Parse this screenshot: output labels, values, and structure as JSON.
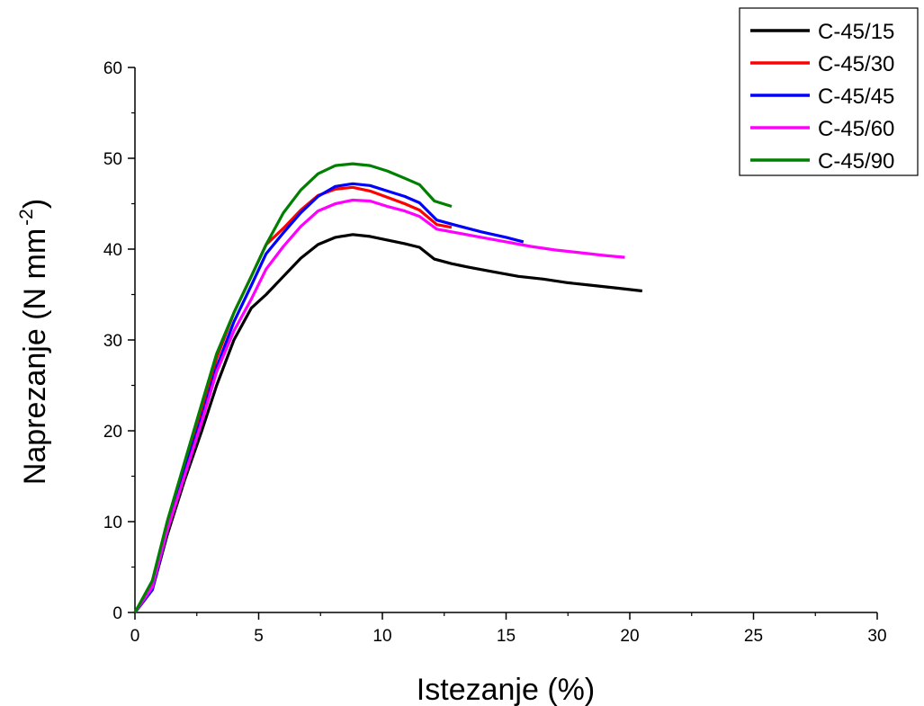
{
  "chart_data": {
    "type": "line",
    "xlabel": "Istezanje (%)",
    "ylabel_main": "Naprezanje (N mm",
    "ylabel_sup": "-2",
    "ylabel_close": ")",
    "xlim": [
      0,
      30
    ],
    "ylim": [
      0,
      60
    ],
    "xticks": [
      "0",
      "5",
      "10",
      "15",
      "20",
      "25",
      "30"
    ],
    "yticks": [
      "0",
      "10",
      "20",
      "30",
      "40",
      "50",
      "60"
    ],
    "grid": false,
    "legend_position": "top-right",
    "series": [
      {
        "name": "C-45/15",
        "color": "#000000",
        "x": [
          0,
          0.7,
          1.3,
          2.0,
          2.7,
          3.3,
          4.0,
          4.7,
          5.3,
          6.0,
          6.7,
          7.4,
          8.1,
          8.8,
          9.5,
          10.2,
          10.9,
          11.5,
          12.1,
          12.8,
          13.5,
          14.5,
          15.5,
          16.5,
          17.5,
          18.5,
          19.5,
          20.5
        ],
        "y": [
          0,
          2.5,
          8.5,
          14.5,
          20,
          25,
          30,
          33.5,
          35,
          37,
          39,
          40.5,
          41.3,
          41.6,
          41.4,
          41,
          40.6,
          40.2,
          38.9,
          38.4,
          38,
          37.5,
          37,
          36.7,
          36.3,
          36,
          35.7,
          35.4
        ]
      },
      {
        "name": "C-45/30",
        "color": "#ff0000",
        "x": [
          0,
          0.7,
          1.3,
          2.0,
          2.7,
          3.3,
          4.0,
          4.7,
          5.3,
          6.0,
          6.7,
          7.4,
          8.1,
          8.8,
          9.5,
          10.2,
          10.9,
          11.5,
          12.2,
          12.8
        ],
        "y": [
          0,
          3,
          9.5,
          16,
          22.5,
          28,
          33,
          37,
          40.5,
          42.3,
          44.3,
          45.9,
          46.6,
          46.8,
          46.4,
          45.7,
          45,
          44.3,
          42.7,
          42.4
        ]
      },
      {
        "name": "C-45/45",
        "color": "#0000ff",
        "x": [
          0,
          0.7,
          1.3,
          2.0,
          2.7,
          3.3,
          4.0,
          4.7,
          5.3,
          6.0,
          6.7,
          7.4,
          8.1,
          8.8,
          9.5,
          10.2,
          10.9,
          11.5,
          12.2,
          13.0,
          14.0,
          15.0,
          15.7
        ],
        "y": [
          0,
          2.5,
          9,
          15.5,
          21.5,
          27,
          32,
          36,
          39.5,
          41.8,
          44,
          45.8,
          46.9,
          47.2,
          47,
          46.4,
          45.8,
          45.1,
          43.2,
          42.6,
          41.9,
          41.3,
          40.8
        ]
      },
      {
        "name": "C-45/60",
        "color": "#ff00ff",
        "x": [
          0,
          0.7,
          1.3,
          2.0,
          2.7,
          3.3,
          4.0,
          4.7,
          5.3,
          6.0,
          6.7,
          7.4,
          8.1,
          8.8,
          9.5,
          10.2,
          10.9,
          11.5,
          12.2,
          13.0,
          14.0,
          15.0,
          16.0,
          17.0,
          18.0,
          19.0,
          19.8
        ],
        "y": [
          0,
          2.8,
          9,
          15,
          21,
          26.5,
          31,
          34.5,
          37.8,
          40.3,
          42.5,
          44.2,
          45,
          45.4,
          45.3,
          44.7,
          44.2,
          43.6,
          42.2,
          41.8,
          41.3,
          40.8,
          40.3,
          39.9,
          39.6,
          39.3,
          39.1
        ]
      },
      {
        "name": "C-45/90",
        "color": "#008000",
        "x": [
          0,
          0.7,
          1.3,
          2.0,
          2.7,
          3.3,
          4.0,
          4.7,
          5.3,
          6.0,
          6.7,
          7.4,
          8.1,
          8.8,
          9.5,
          10.2,
          10.9,
          11.5,
          12.1,
          12.8
        ],
        "y": [
          0,
          3.5,
          10,
          16.5,
          23,
          28.5,
          33,
          37,
          40.5,
          44,
          46.5,
          48.3,
          49.2,
          49.4,
          49.2,
          48.6,
          47.8,
          47.1,
          45.3,
          44.7
        ]
      }
    ]
  }
}
